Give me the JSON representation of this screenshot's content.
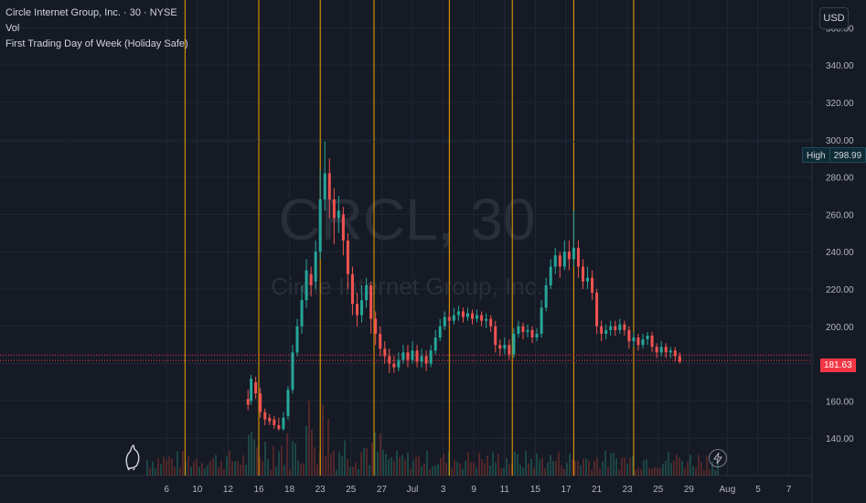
{
  "legend": {
    "title": "Circle Internet Group, Inc. · 30 · NYSE",
    "volume": "Vol",
    "indicator": "First Trading Day of Week (Holiday Safe)"
  },
  "watermark": {
    "symbol": "CRCL, 30",
    "company": "Circle Internet Group, Inc."
  },
  "currency_button": "USD",
  "high_marker": {
    "label": "High",
    "value": "298.99"
  },
  "last_price": "181.63",
  "icons": {
    "logo": "tradingview-logo-icon",
    "bolt": "lightning-bolt-icon"
  },
  "colors": {
    "up": "#26a69a",
    "down": "#ef5350",
    "week_line": "#f0a500",
    "last_line": "#f23645",
    "background": "#161a25"
  },
  "chart_data": {
    "type": "candlestick",
    "title": "Circle Internet Group, Inc. · 30 · NYSE",
    "ylim": [
      120,
      370
    ],
    "y_ticks": [
      "360.00",
      "340.00",
      "320.00",
      "300.00",
      "280.00",
      "260.00",
      "240.00",
      "220.00",
      "200.00",
      "180.00",
      "160.00",
      "140.00"
    ],
    "y_tick_values": [
      360,
      340,
      320,
      300,
      280,
      260,
      240,
      220,
      200,
      180,
      160,
      140
    ],
    "x_ticks": [
      "6",
      "10",
      "12",
      "16",
      "18",
      "23",
      "25",
      "27",
      "Jul",
      "3",
      "9",
      "11",
      "15",
      "17",
      "21",
      "23",
      "25",
      "29",
      "Aug",
      "5",
      "7"
    ],
    "x_tick_index": [
      1.5,
      3.5,
      5.5,
      7.5,
      9.5,
      11.5,
      13.5,
      15.5,
      17.5,
      19.5,
      21.5,
      23.5,
      25.5,
      27.5,
      29.5,
      31.5,
      33.5,
      35.5,
      38.0,
      40.0,
      42.0
    ],
    "week_start_index": [
      2.7,
      7.5,
      11.5,
      15.0,
      19.9,
      24.0,
      28.0,
      31.9
    ],
    "grid": true,
    "high": 298.99,
    "last": 181.63,
    "daily_path": [
      [
        6.8,
        161,
        158,
        166,
        155,
        "down"
      ],
      [
        7.0,
        160,
        172,
        174,
        158,
        "up"
      ],
      [
        7.3,
        170,
        164,
        173,
        161,
        "down"
      ],
      [
        7.6,
        164,
        154,
        167,
        151,
        "down"
      ],
      [
        7.9,
        154,
        150,
        156,
        147,
        "down"
      ],
      [
        8.2,
        151,
        149,
        153,
        147,
        "down"
      ],
      [
        8.5,
        150,
        147,
        152,
        145,
        "down"
      ],
      [
        8.8,
        147,
        145,
        151,
        144,
        "down"
      ],
      [
        9.1,
        145,
        151,
        154,
        144,
        "up"
      ],
      [
        9.4,
        152,
        166,
        168,
        150,
        "up"
      ],
      [
        9.7,
        166,
        186,
        190,
        164,
        "up"
      ],
      [
        10.0,
        186,
        200,
        204,
        184,
        "up"
      ],
      [
        10.3,
        200,
        214,
        222,
        196,
        "up"
      ],
      [
        10.6,
        214,
        230,
        236,
        210,
        "up"
      ],
      [
        10.9,
        228,
        222,
        232,
        216,
        "down"
      ],
      [
        11.2,
        224,
        240,
        246,
        220,
        "up"
      ],
      [
        11.5,
        240,
        268,
        284,
        236,
        "up"
      ],
      [
        11.8,
        268,
        282,
        299,
        262,
        "up"
      ],
      [
        12.1,
        282,
        268,
        290,
        258,
        "down"
      ],
      [
        12.4,
        268,
        258,
        274,
        244,
        "down"
      ],
      [
        12.7,
        258,
        262,
        270,
        250,
        "up"
      ],
      [
        13.0,
        260,
        246,
        264,
        238,
        "down"
      ],
      [
        13.3,
        246,
        228,
        250,
        220,
        "down"
      ],
      [
        13.6,
        228,
        212,
        232,
        206,
        "down"
      ],
      [
        13.9,
        212,
        206,
        218,
        200,
        "down"
      ],
      [
        14.2,
        206,
        214,
        222,
        202,
        "up"
      ],
      [
        14.5,
        214,
        222,
        226,
        210,
        "up"
      ],
      [
        14.8,
        222,
        204,
        224,
        196,
        "down"
      ],
      [
        15.1,
        204,
        196,
        208,
        190,
        "down"
      ],
      [
        15.4,
        196,
        188,
        200,
        184,
        "down"
      ],
      [
        15.7,
        188,
        184,
        192,
        180,
        "down"
      ],
      [
        16.0,
        184,
        180,
        188,
        175,
        "down"
      ],
      [
        16.3,
        180,
        178,
        184,
        175,
        "down"
      ],
      [
        16.6,
        178,
        182,
        186,
        176,
        "up"
      ],
      [
        16.9,
        182,
        186,
        190,
        180,
        "up"
      ],
      [
        17.2,
        186,
        182,
        190,
        178,
        "down"
      ],
      [
        17.5,
        182,
        187,
        192,
        180,
        "up"
      ],
      [
        17.8,
        187,
        181,
        190,
        178,
        "down"
      ],
      [
        18.1,
        181,
        184,
        188,
        178,
        "up"
      ],
      [
        18.4,
        184,
        180,
        187,
        176,
        "down"
      ],
      [
        18.7,
        180,
        187,
        190,
        178,
        "up"
      ],
      [
        19.0,
        187,
        194,
        198,
        185,
        "up"
      ],
      [
        19.3,
        194,
        200,
        204,
        192,
        "up"
      ],
      [
        19.6,
        200,
        205,
        208,
        198,
        "up"
      ],
      [
        19.9,
        205,
        203,
        208,
        200,
        "down"
      ],
      [
        20.2,
        203,
        206,
        210,
        201,
        "up"
      ],
      [
        20.5,
        206,
        208,
        211,
        203,
        "up"
      ],
      [
        20.8,
        208,
        205,
        210,
        202,
        "down"
      ],
      [
        21.1,
        205,
        207,
        210,
        203,
        "up"
      ],
      [
        21.4,
        207,
        204,
        209,
        201,
        "down"
      ],
      [
        21.7,
        204,
        206,
        209,
        202,
        "up"
      ],
      [
        22.0,
        206,
        203,
        208,
        200,
        "down"
      ],
      [
        22.3,
        203,
        204,
        207,
        199,
        "up"
      ],
      [
        22.6,
        204,
        200,
        206,
        197,
        "down"
      ],
      [
        22.9,
        200,
        190,
        203,
        186,
        "down"
      ],
      [
        23.2,
        190,
        188,
        193,
        184,
        "down"
      ],
      [
        23.5,
        188,
        190,
        194,
        185,
        "up"
      ],
      [
        23.8,
        190,
        185,
        193,
        182,
        "down"
      ],
      [
        24.1,
        185,
        196,
        199,
        183,
        "up"
      ],
      [
        24.4,
        196,
        200,
        203,
        194,
        "up"
      ],
      [
        24.7,
        200,
        197,
        202,
        193,
        "down"
      ],
      [
        25.0,
        197,
        198,
        201,
        194,
        "up"
      ],
      [
        25.3,
        198,
        194,
        200,
        191,
        "down"
      ],
      [
        25.6,
        194,
        196,
        199,
        192,
        "up"
      ],
      [
        25.9,
        196,
        210,
        214,
        194,
        "up"
      ],
      [
        26.2,
        210,
        222,
        226,
        208,
        "up"
      ],
      [
        26.5,
        222,
        232,
        236,
        220,
        "up"
      ],
      [
        26.8,
        232,
        238,
        242,
        228,
        "up"
      ],
      [
        27.1,
        238,
        232,
        240,
        226,
        "down"
      ],
      [
        27.4,
        232,
        240,
        246,
        230,
        "up"
      ],
      [
        27.7,
        240,
        236,
        246,
        230,
        "down"
      ],
      [
        28.0,
        236,
        242,
        262,
        232,
        "up"
      ],
      [
        28.3,
        242,
        232,
        246,
        226,
        "down"
      ],
      [
        28.6,
        232,
        224,
        236,
        220,
        "down"
      ],
      [
        28.9,
        224,
        226,
        232,
        220,
        "up"
      ],
      [
        29.2,
        226,
        218,
        230,
        214,
        "down"
      ],
      [
        29.5,
        218,
        200,
        220,
        196,
        "down"
      ],
      [
        29.8,
        200,
        196,
        203,
        192,
        "down"
      ],
      [
        30.1,
        196,
        198,
        201,
        193,
        "up"
      ],
      [
        30.4,
        198,
        200,
        203,
        195,
        "up"
      ],
      [
        30.7,
        200,
        198,
        203,
        195,
        "down"
      ],
      [
        31.0,
        198,
        201,
        204,
        196,
        "up"
      ],
      [
        31.3,
        201,
        198,
        203,
        195,
        "down"
      ],
      [
        31.6,
        198,
        192,
        200,
        188,
        "down"
      ],
      [
        31.9,
        192,
        194,
        197,
        189,
        "up"
      ],
      [
        32.2,
        194,
        190,
        196,
        187,
        "down"
      ],
      [
        32.5,
        190,
        193,
        196,
        188,
        "up"
      ],
      [
        32.8,
        193,
        195,
        197,
        190,
        "up"
      ],
      [
        33.1,
        195,
        189,
        197,
        186,
        "down"
      ],
      [
        33.4,
        189,
        186,
        191,
        183,
        "down"
      ],
      [
        33.7,
        186,
        189,
        192,
        184,
        "up"
      ],
      [
        34.0,
        189,
        186,
        191,
        183,
        "down"
      ],
      [
        34.3,
        186,
        187,
        189,
        183,
        "up"
      ],
      [
        34.6,
        187,
        184,
        189,
        181,
        "down"
      ],
      [
        34.9,
        184,
        181,
        186,
        180,
        "down"
      ]
    ]
  }
}
